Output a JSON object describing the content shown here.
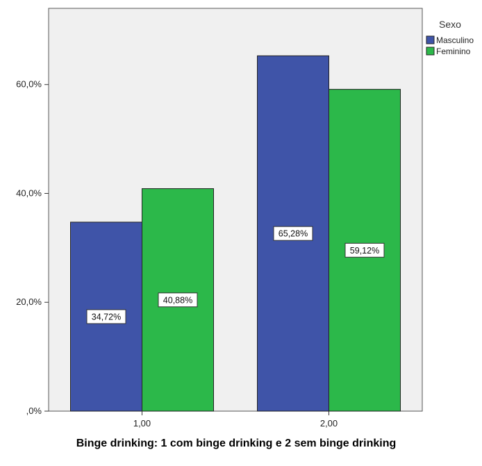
{
  "chart_data": {
    "type": "bar",
    "categories": [
      "1,00",
      "2,00"
    ],
    "series": [
      {
        "name": "Masculino",
        "values": [
          34.72,
          65.28
        ],
        "labels": [
          "34,72%",
          "65,28%"
        ],
        "color": "#3F54A8"
      },
      {
        "name": "Feminino",
        "values": [
          40.88,
          59.12
        ],
        "labels": [
          "40,88%",
          "59,12%"
        ],
        "color": "#2CB84A"
      }
    ],
    "ylim": [
      0,
      74
    ],
    "yticks": [
      {
        "value": 0,
        "label": ",0%"
      },
      {
        "value": 20,
        "label": "20,0%"
      },
      {
        "value": 40,
        "label": "40,0%"
      },
      {
        "value": 60,
        "label": "60,0%"
      }
    ],
    "xlabel": "Binge drinking: 1  com binge drinking e 2 sem binge drinking",
    "legend": {
      "title": "Sexo",
      "position": "top-right"
    },
    "plot_background": "#F0F0F0"
  }
}
